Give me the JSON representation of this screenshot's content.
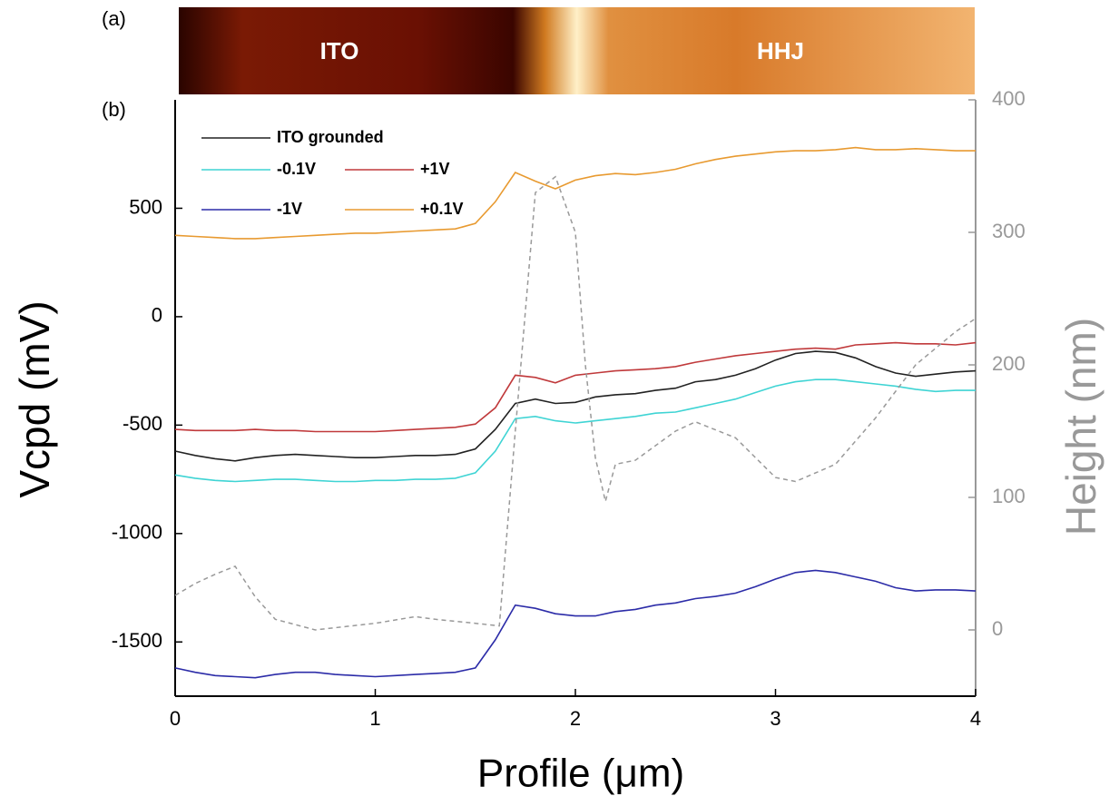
{
  "panel_labels": [
    "(a)",
    "(b)"
  ],
  "image_labels": [
    "ITO",
    "HHJ"
  ],
  "chart_data": {
    "type": "line",
    "xlabel": "Profile (μm)",
    "ylabel": "Vcpd (mV)",
    "y2label": "Height (nm)",
    "xlim": [
      0,
      4
    ],
    "xticks": [
      0,
      1,
      2,
      3,
      4
    ],
    "ylim": [
      -1750,
      1000
    ],
    "yticks": [
      -1500,
      -1000,
      -500,
      0,
      500
    ],
    "y2lim": [
      -50,
      400
    ],
    "y2ticks": [
      0,
      100,
      200,
      300,
      400
    ],
    "legend": "upper left",
    "x": [
      0,
      0.1,
      0.2,
      0.3,
      0.4,
      0.5,
      0.6,
      0.7,
      0.8,
      0.9,
      1.0,
      1.1,
      1.2,
      1.3,
      1.4,
      1.5,
      1.6,
      1.7,
      1.8,
      1.9,
      2.0,
      2.1,
      2.2,
      2.3,
      2.4,
      2.5,
      2.6,
      2.7,
      2.8,
      2.9,
      3.0,
      3.1,
      3.2,
      3.3,
      3.4,
      3.5,
      3.6,
      3.7,
      3.8,
      3.9,
      4.0
    ],
    "series": [
      {
        "name": "ITO grounded",
        "color": "#222222",
        "values": [
          -620,
          -640,
          -655,
          -665,
          -650,
          -640,
          -635,
          -640,
          -645,
          -650,
          -650,
          -645,
          -640,
          -640,
          -635,
          -610,
          -520,
          -400,
          -380,
          -400,
          -395,
          -370,
          -360,
          -355,
          -340,
          -330,
          -300,
          -290,
          -270,
          -240,
          -200,
          -170,
          -160,
          -165,
          -190,
          -230,
          -260,
          -275,
          -265,
          -255,
          -250
        ]
      },
      {
        "name": "-0.1V",
        "color": "#3fd4d4",
        "values": [
          -730,
          -745,
          -755,
          -760,
          -755,
          -750,
          -750,
          -755,
          -760,
          -760,
          -755,
          -755,
          -750,
          -750,
          -745,
          -720,
          -620,
          -470,
          -460,
          -480,
          -490,
          -480,
          -470,
          -460,
          -445,
          -440,
          -420,
          -400,
          -380,
          -350,
          -320,
          -300,
          -290,
          -290,
          -300,
          -310,
          -320,
          -335,
          -345,
          -340,
          -340
        ]
      },
      {
        "name": "+1V",
        "color": "#c0393b",
        "values": [
          -520,
          -525,
          -525,
          -525,
          -520,
          -525,
          -525,
          -530,
          -530,
          -530,
          -530,
          -525,
          -520,
          -515,
          -510,
          -495,
          -420,
          -270,
          -280,
          -305,
          -270,
          -260,
          -250,
          -245,
          -240,
          -230,
          -210,
          -195,
          -180,
          -170,
          -160,
          -150,
          -145,
          -150,
          -130,
          -125,
          -120,
          -125,
          -125,
          -130,
          -120
        ]
      },
      {
        "name": "-1V",
        "color": "#2c2ca8",
        "values": [
          -1620,
          -1640,
          -1655,
          -1660,
          -1665,
          -1650,
          -1640,
          -1640,
          -1650,
          -1655,
          -1660,
          -1655,
          -1650,
          -1645,
          -1640,
          -1620,
          -1490,
          -1330,
          -1345,
          -1370,
          -1380,
          -1380,
          -1360,
          -1350,
          -1330,
          -1320,
          -1300,
          -1290,
          -1275,
          -1245,
          -1210,
          -1180,
          -1170,
          -1180,
          -1200,
          -1220,
          -1250,
          -1265,
          -1260,
          -1260,
          -1265
        ]
      },
      {
        "name": "+0.1V",
        "color": "#e89a30",
        "values": [
          375,
          370,
          365,
          360,
          360,
          365,
          370,
          375,
          380,
          385,
          385,
          390,
          395,
          400,
          405,
          430,
          530,
          665,
          625,
          590,
          630,
          650,
          660,
          655,
          665,
          680,
          705,
          725,
          740,
          750,
          760,
          765,
          765,
          770,
          780,
          770,
          770,
          775,
          770,
          765,
          765
        ]
      },
      {
        "color": "#999999",
        "axis": "y2",
        "dashed": true,
        "x": [
          0,
          0.1,
          0.2,
          0.3,
          0.4,
          0.5,
          0.7,
          1.0,
          1.2,
          1.3,
          1.5,
          1.62,
          1.7,
          1.8,
          1.9,
          2.0,
          2.05,
          2.1,
          2.15,
          2.2,
          2.3,
          2.5,
          2.6,
          2.8,
          3.0,
          3.1,
          3.3,
          3.5,
          3.7,
          3.9,
          4.0
        ],
        "values": [
          26,
          35,
          42,
          48,
          25,
          8,
          0,
          5,
          10,
          8,
          5,
          3,
          150,
          330,
          342,
          300,
          200,
          130,
          97,
          125,
          128,
          150,
          157,
          145,
          115,
          112,
          125,
          160,
          200,
          225,
          235
        ]
      }
    ]
  }
}
